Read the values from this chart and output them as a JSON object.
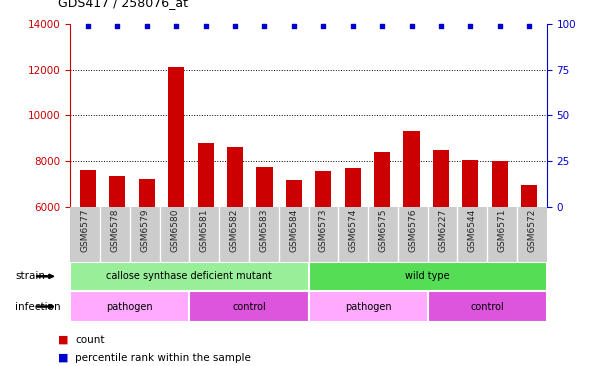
{
  "title": "GDS417 / 258076_at",
  "samples": [
    "GSM6577",
    "GSM6578",
    "GSM6579",
    "GSM6580",
    "GSM6581",
    "GSM6582",
    "GSM6583",
    "GSM6584",
    "GSM6573",
    "GSM6574",
    "GSM6575",
    "GSM6576",
    "GSM6227",
    "GSM6544",
    "GSM6571",
    "GSM6572"
  ],
  "counts": [
    7600,
    7350,
    7200,
    12100,
    8800,
    8600,
    7750,
    7150,
    7550,
    7700,
    8400,
    9300,
    8500,
    8050,
    8000,
    6950
  ],
  "percentiles": [
    99,
    99,
    99,
    99,
    99,
    99,
    99,
    99,
    99,
    99,
    99,
    99,
    99,
    99,
    99,
    99
  ],
  "bar_color": "#cc0000",
  "percentile_color": "#0000cc",
  "ylim_left": [
    6000,
    14000
  ],
  "ylim_right": [
    0,
    100
  ],
  "yticks_left": [
    6000,
    8000,
    10000,
    12000,
    14000
  ],
  "yticks_right": [
    0,
    25,
    50,
    75,
    100
  ],
  "grid_values": [
    8000,
    10000,
    12000
  ],
  "strain_groups": [
    {
      "label": "callose synthase deficient mutant",
      "start": 0,
      "end": 8,
      "color": "#99ee99"
    },
    {
      "label": "wild type",
      "start": 8,
      "end": 16,
      "color": "#55dd55"
    }
  ],
  "infection_groups": [
    {
      "label": "pathogen",
      "start": 0,
      "end": 4,
      "color": "#ffaaff"
    },
    {
      "label": "control",
      "start": 4,
      "end": 8,
      "color": "#dd55dd"
    },
    {
      "label": "pathogen",
      "start": 8,
      "end": 12,
      "color": "#ffaaff"
    },
    {
      "label": "control",
      "start": 12,
      "end": 16,
      "color": "#dd55dd"
    }
  ],
  "strain_label": "strain",
  "infection_label": "infection",
  "legend_count_label": "count",
  "legend_percentile_label": "percentile rank within the sample",
  "tick_box_color": "#cccccc",
  "tick_label_color": "#222222",
  "left_axis_color": "#cc0000",
  "right_axis_color": "#0000cc",
  "background_color": "#ffffff"
}
